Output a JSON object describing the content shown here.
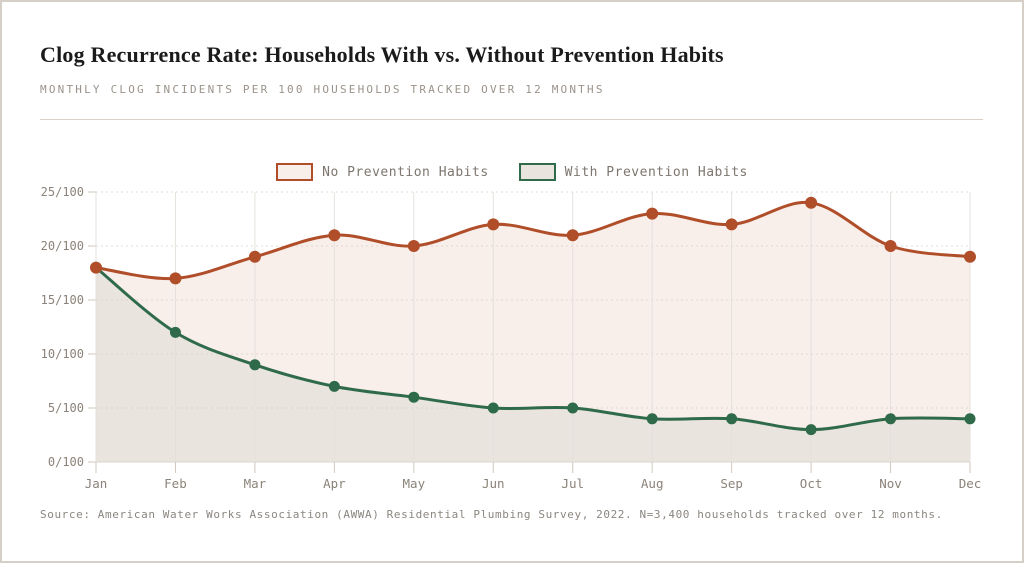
{
  "chart_data": {
    "type": "area",
    "title": "Clog Recurrence Rate: Households With vs. Without Prevention Habits",
    "subtitle": "MONTHLY CLOG INCIDENTS PER 100 HOUSEHOLDS TRACKED OVER 12 MONTHS",
    "source": "Source: American Water Works Association (AWWA) Residential Plumbing Survey, 2022. N=3,400 households tracked over 12 months.",
    "categories": [
      "Jan",
      "Feb",
      "Mar",
      "Apr",
      "May",
      "Jun",
      "Jul",
      "Aug",
      "Sep",
      "Oct",
      "Nov",
      "Dec"
    ],
    "series": [
      {
        "name": "No Prevention Habits",
        "values": [
          18,
          17,
          19,
          21,
          20,
          22,
          21,
          23,
          22,
          24,
          20,
          19
        ],
        "line_color": "#b14e2a",
        "fill_color": "#f8eeea",
        "point_radius": 6
      },
      {
        "name": "With Prevention Habits",
        "values": [
          18,
          12,
          9,
          7,
          6,
          5,
          5,
          4,
          4,
          3,
          4,
          4
        ],
        "line_color": "#2f6b4b",
        "fill_color": "#e9e5de",
        "point_radius": 5.5
      }
    ],
    "ylim": [
      0,
      25
    ],
    "yticks": [
      {
        "value": 0,
        "label": "0/100"
      },
      {
        "value": 5,
        "label": "5/100"
      },
      {
        "value": 10,
        "label": "10/100"
      },
      {
        "value": 15,
        "label": "15/100"
      },
      {
        "value": 20,
        "label": "20/100"
      },
      {
        "value": 25,
        "label": "25/100"
      }
    ],
    "grid": true,
    "legend_position": "top-center",
    "xlabel": "",
    "ylabel": ""
  },
  "colors": {
    "page_border": "#d6cfc8",
    "divider": "#d9d1c7",
    "grid_h": "#d8d1ca",
    "grid_v": "#e3dfda",
    "axis_text": "#8b8379",
    "title_text": "#1b1b1b",
    "subtitle_text": "#9a938b",
    "legend_text": "#7d766e",
    "source_text": "#8b8680"
  }
}
